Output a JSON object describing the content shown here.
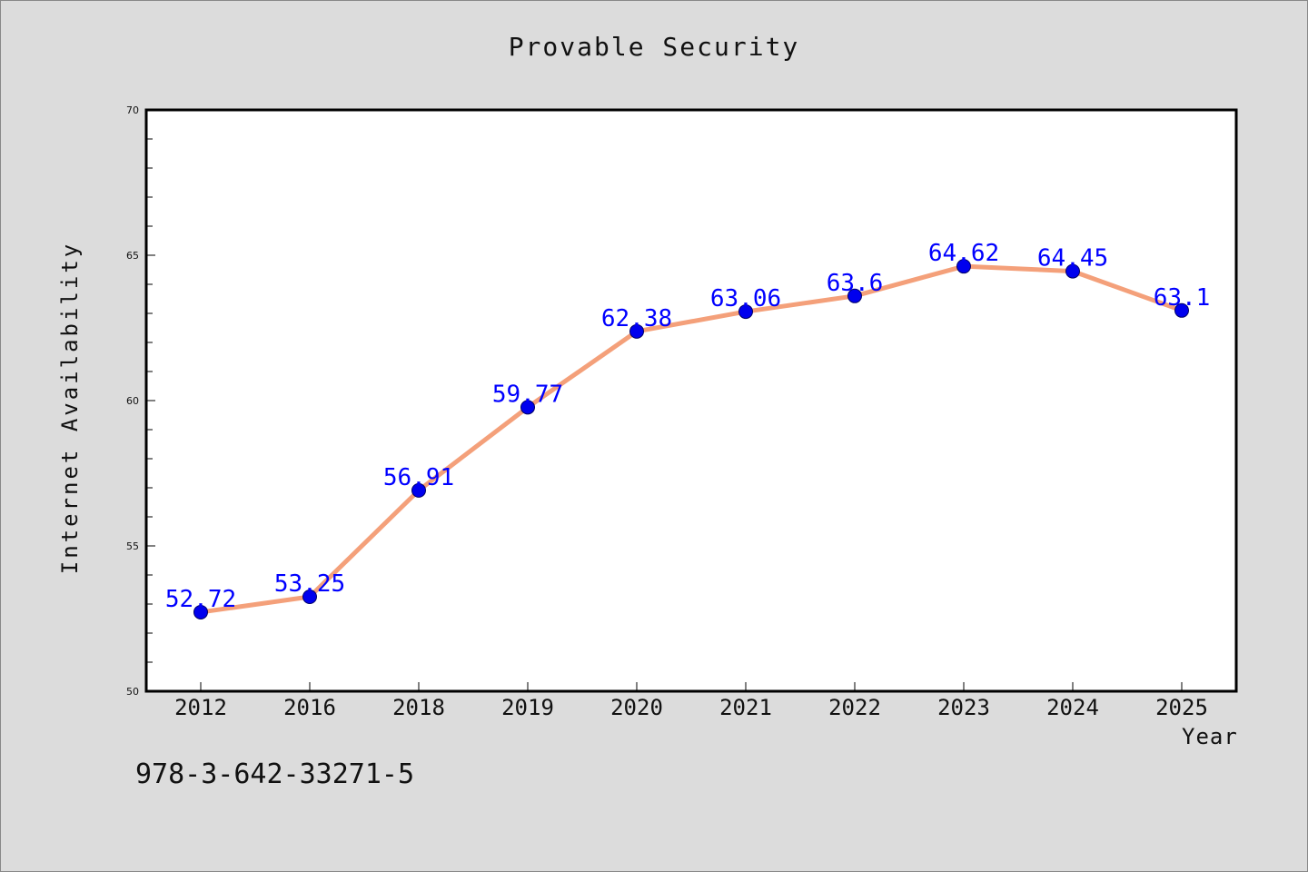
{
  "chart_data": {
    "type": "line",
    "title": "Provable Security",
    "xlabel": "Year",
    "ylabel": "Internet Availability",
    "categories": [
      "2012",
      "2016",
      "2018",
      "2019",
      "2020",
      "2021",
      "2022",
      "2023",
      "2024",
      "2025"
    ],
    "series": [
      {
        "values": [
          52.72,
          53.25,
          56.91,
          59.77,
          62.38,
          63.06,
          63.6,
          64.62,
          64.45,
          63.1
        ],
        "labels": [
          "52.72",
          "53.25",
          "56.91",
          "59.77",
          "62.38",
          "63.06",
          "63.6",
          "64.62",
          "64.45",
          "63.1"
        ],
        "line_color": "#f4a07a",
        "marker_color": "#0000ee",
        "label_color": "#0000ff"
      }
    ],
    "ylim": [
      50,
      70
    ],
    "yticks": [
      "50",
      "55",
      "60",
      "65",
      "70"
    ],
    "grid": false,
    "legend": "none"
  },
  "footer_text": "978-3-642-33271-5"
}
